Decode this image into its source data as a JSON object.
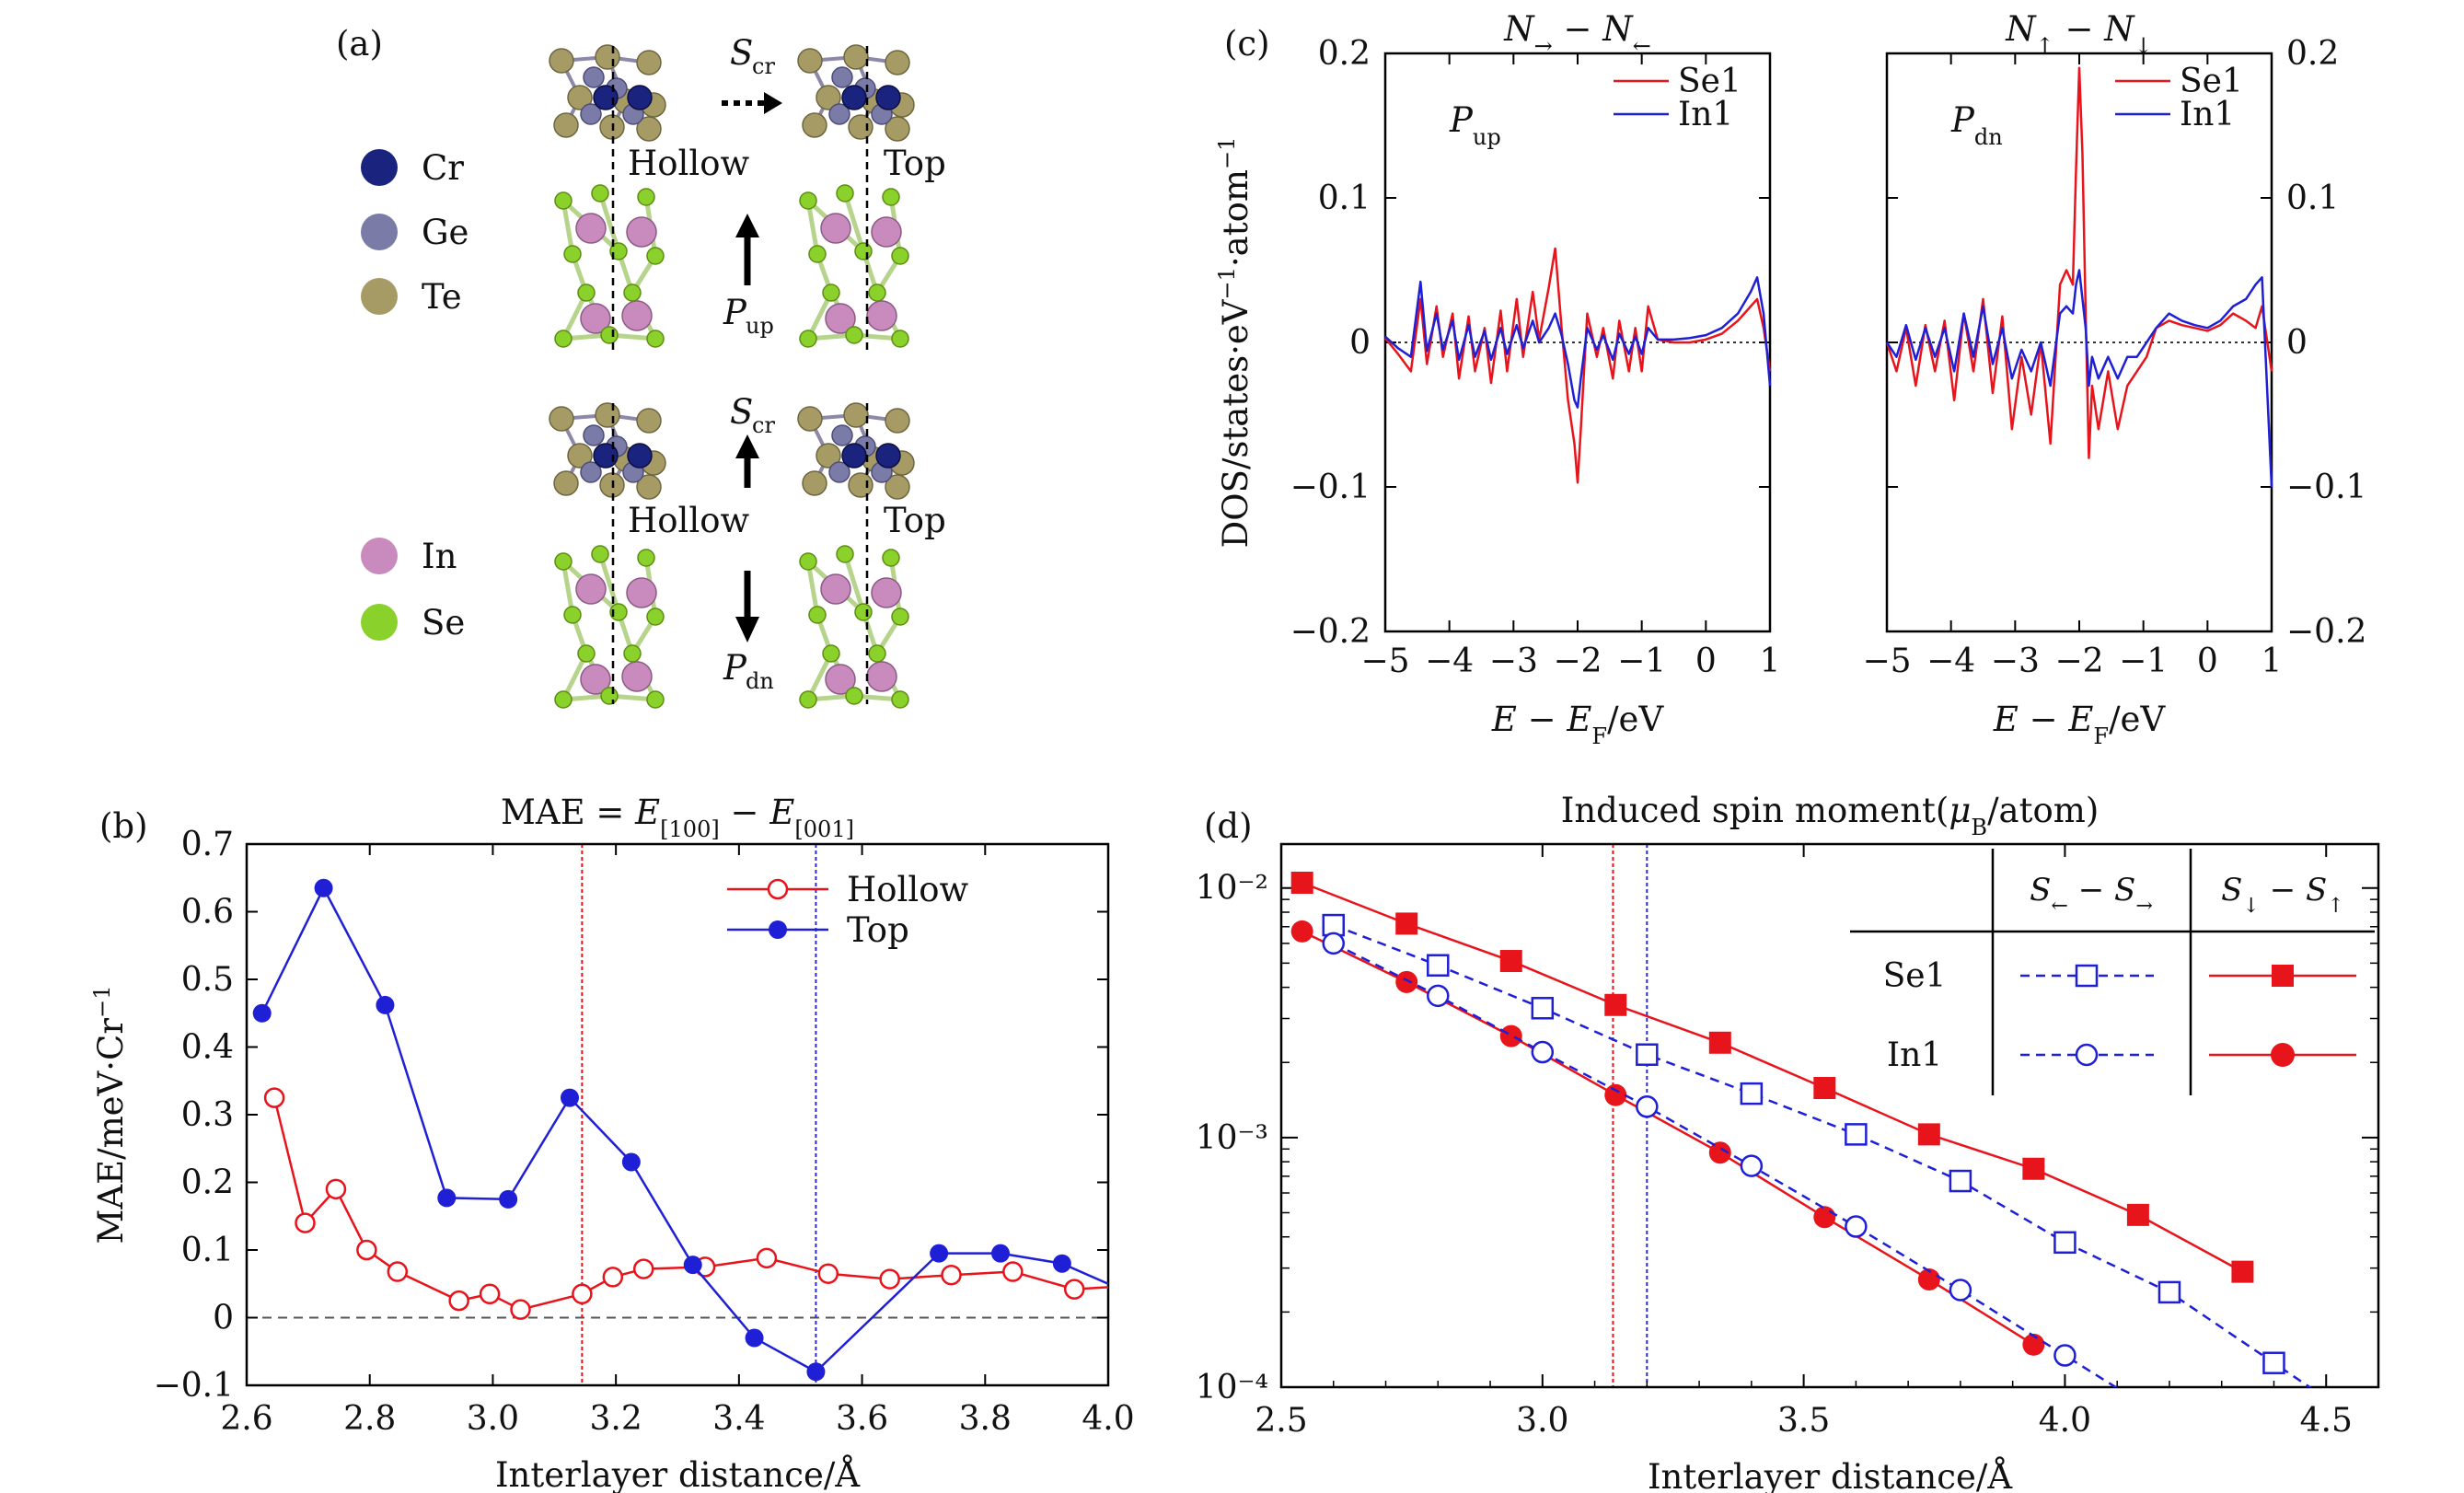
{
  "panels": {
    "a": {
      "label": "(a)",
      "legend": [
        {
          "name": "Cr",
          "color": "#1a237e"
        },
        {
          "name": "Ge",
          "color": "#7b7ba8"
        },
        {
          "name": "Te",
          "color": "#a69b64"
        },
        {
          "name": "In",
          "color": "#c98bbd"
        },
        {
          "name": "Se",
          "color": "#8bd12b"
        }
      ],
      "spin_label_main": "S",
      "spin_label_sub": "cr",
      "pol_up_main": "P",
      "pol_up_sub": "up",
      "pol_dn_main": "P",
      "pol_dn_sub": "dn",
      "site_hollow": "Hollow",
      "site_top": "Top"
    },
    "b": {
      "label": "(b)"
    },
    "c": {
      "label": "(c)"
    },
    "d": {
      "label": "(d)"
    }
  },
  "chart_data": [
    {
      "id": "b",
      "type": "line",
      "title": "MAE = E[100] − E[001]",
      "xlabel": "Interlayer distance/Å",
      "ylabel": "MAE/meV·Cr⁻¹",
      "xlim": [
        2.6,
        4.0
      ],
      "ylim": [
        -0.1,
        0.7
      ],
      "xticks": [
        "2.6",
        "2.8",
        "3.0",
        "3.2",
        "3.4",
        "3.6",
        "3.8",
        "4.0"
      ],
      "yticks": [
        "−0.1",
        "0",
        "0.1",
        "0.2",
        "0.3",
        "0.4",
        "0.5",
        "0.6",
        "0.7"
      ],
      "legend_position": "top-right",
      "vlines": [
        {
          "x": 3.145,
          "color": "#e8141c"
        },
        {
          "x": 3.525,
          "color": "#2b2bd8"
        }
      ],
      "series": [
        {
          "name": "Hollow",
          "color": "#e8141c",
          "marker": "open-circle",
          "x": [
            2.645,
            2.695,
            2.745,
            2.795,
            2.845,
            2.945,
            2.995,
            3.045,
            3.145,
            3.195,
            3.245,
            3.345,
            3.445,
            3.545,
            3.645,
            3.745,
            3.845,
            3.945,
            4.0
          ],
          "y": [
            0.325,
            0.14,
            0.19,
            0.1,
            0.068,
            0.025,
            0.035,
            0.012,
            0.035,
            0.06,
            0.072,
            0.075,
            0.088,
            0.065,
            0.057,
            0.063,
            0.068,
            0.042,
            0.045
          ]
        },
        {
          "name": "Top",
          "color": "#1f1fd6",
          "marker": "filled-circle",
          "x": [
            2.625,
            2.725,
            2.825,
            2.925,
            3.025,
            3.125,
            3.225,
            3.325,
            3.425,
            3.525,
            3.725,
            3.825,
            3.925,
            4.0
          ],
          "y": [
            0.45,
            0.635,
            0.462,
            0.177,
            0.175,
            0.325,
            0.23,
            0.078,
            -0.03,
            -0.08,
            0.095,
            0.095,
            0.08,
            0.05
          ]
        }
      ]
    },
    {
      "id": "c-left",
      "type": "line",
      "title": "N→ − N←",
      "annotation": "Pup",
      "xlabel": "E − EF/eV",
      "ylabel": "DOS/states·eV⁻¹·atom⁻¹",
      "xlim": [
        -5,
        1
      ],
      "ylim": [
        -0.2,
        0.2
      ],
      "xticks": [
        "−5",
        "−4",
        "−3",
        "−2",
        "−1",
        "0",
        "1"
      ],
      "yticks": [
        "−0.2",
        "−0.1",
        "0",
        "0.1",
        "0.2"
      ],
      "legend_position": "top-right",
      "series": [
        {
          "name": "Se1",
          "color": "#e8141c",
          "x": [
            -5,
            -4.8,
            -4.6,
            -4.45,
            -4.35,
            -4.2,
            -4.1,
            -3.95,
            -3.85,
            -3.7,
            -3.6,
            -3.45,
            -3.35,
            -3.2,
            -3.1,
            -2.95,
            -2.85,
            -2.7,
            -2.6,
            -2.45,
            -2.35,
            -2.25,
            -2.15,
            -2.05,
            -2.0,
            -1.95,
            -1.85,
            -1.7,
            -1.6,
            -1.45,
            -1.35,
            -1.2,
            -1.1,
            -1.0,
            -0.9,
            -0.75,
            -0.5,
            -0.25,
            0,
            0.25,
            0.5,
            0.7,
            0.8,
            0.9,
            1.0
          ],
          "y": [
            0.003,
            -0.008,
            -0.02,
            0.03,
            -0.015,
            0.025,
            -0.01,
            0.02,
            -0.025,
            0.018,
            -0.02,
            0.01,
            -0.028,
            0.022,
            -0.02,
            0.03,
            -0.01,
            0.035,
            0.002,
            0.038,
            0.065,
            0.01,
            -0.04,
            -0.07,
            -0.097,
            -0.06,
            0.02,
            -0.01,
            0.01,
            -0.025,
            0.015,
            -0.02,
            0.01,
            -0.02,
            0.025,
            0.002,
            0.0,
            0.0,
            0.002,
            0.006,
            0.015,
            0.025,
            0.03,
            0.01,
            -0.02
          ]
        },
        {
          "name": "In1",
          "color": "#1f1fd6",
          "x": [
            -5,
            -4.8,
            -4.6,
            -4.45,
            -4.35,
            -4.2,
            -4.1,
            -3.95,
            -3.85,
            -3.7,
            -3.6,
            -3.45,
            -3.35,
            -3.2,
            -3.1,
            -2.95,
            -2.85,
            -2.7,
            -2.6,
            -2.45,
            -2.35,
            -2.25,
            -2.15,
            -2.05,
            -2.0,
            -1.95,
            -1.85,
            -1.7,
            -1.6,
            -1.45,
            -1.35,
            -1.2,
            -1.1,
            -1.0,
            -0.9,
            -0.75,
            -0.5,
            -0.25,
            0,
            0.25,
            0.5,
            0.7,
            0.8,
            0.9,
            1.0
          ],
          "y": [
            0.004,
            -0.004,
            -0.01,
            0.042,
            -0.006,
            0.02,
            -0.005,
            0.015,
            -0.012,
            0.012,
            -0.01,
            0.008,
            -0.012,
            0.01,
            -0.008,
            0.012,
            -0.004,
            0.015,
            0.0,
            0.01,
            0.02,
            0.005,
            -0.015,
            -0.04,
            -0.045,
            -0.025,
            0.01,
            -0.005,
            0.005,
            -0.012,
            0.006,
            -0.008,
            0.004,
            -0.008,
            0.01,
            0.002,
            0.002,
            0.003,
            0.005,
            0.01,
            0.02,
            0.035,
            0.045,
            0.02,
            -0.03
          ]
        }
      ]
    },
    {
      "id": "c-right",
      "type": "line",
      "title": "N↑ − N↓",
      "annotation": "Pdn",
      "xlabel": "E − EF/eV",
      "xlim": [
        -5,
        1
      ],
      "ylim": [
        -0.2,
        0.2
      ],
      "xticks": [
        "−5",
        "−4",
        "−3",
        "−2",
        "−1",
        "0",
        "1"
      ],
      "yticks": [
        "−0.2",
        "−0.1",
        "0",
        "0.1",
        "0.2"
      ],
      "legend_position": "top-right",
      "series": [
        {
          "name": "Se1",
          "color": "#e8141c",
          "x": [
            -5,
            -4.85,
            -4.7,
            -4.55,
            -4.4,
            -4.25,
            -4.1,
            -3.95,
            -3.8,
            -3.65,
            -3.5,
            -3.35,
            -3.2,
            -3.05,
            -2.9,
            -2.75,
            -2.6,
            -2.45,
            -2.3,
            -2.2,
            -2.1,
            -2.05,
            -2.0,
            -1.95,
            -1.9,
            -1.85,
            -1.8,
            -1.7,
            -1.55,
            -1.4,
            -1.25,
            -1.1,
            -0.95,
            -0.8,
            -0.6,
            -0.4,
            -0.2,
            0,
            0.2,
            0.4,
            0.6,
            0.75,
            0.85,
            1.0
          ],
          "y": [
            0.0,
            -0.02,
            0.01,
            -0.03,
            0.012,
            -0.02,
            0.015,
            -0.04,
            0.02,
            -0.02,
            0.03,
            -0.035,
            0.018,
            -0.06,
            -0.01,
            -0.05,
            0.0,
            -0.07,
            0.04,
            0.05,
            0.04,
            0.12,
            0.19,
            0.13,
            0.02,
            -0.08,
            -0.03,
            -0.06,
            -0.02,
            -0.06,
            -0.03,
            -0.02,
            -0.01,
            0.01,
            0.015,
            0.012,
            0.01,
            0.008,
            0.012,
            0.02,
            0.015,
            0.01,
            0.025,
            -0.02
          ]
        },
        {
          "name": "In1",
          "color": "#1f1fd6",
          "x": [
            -5,
            -4.85,
            -4.7,
            -4.55,
            -4.4,
            -4.25,
            -4.1,
            -3.95,
            -3.8,
            -3.65,
            -3.5,
            -3.35,
            -3.2,
            -3.05,
            -2.9,
            -2.75,
            -2.6,
            -2.45,
            -2.3,
            -2.2,
            -2.1,
            -2.05,
            -2.0,
            -1.95,
            -1.9,
            -1.85,
            -1.8,
            -1.7,
            -1.55,
            -1.4,
            -1.25,
            -1.1,
            -0.95,
            -0.8,
            -0.6,
            -0.4,
            -0.2,
            0,
            0.2,
            0.4,
            0.6,
            0.75,
            0.85,
            1.0
          ],
          "y": [
            0.0,
            -0.01,
            0.012,
            -0.012,
            0.01,
            -0.01,
            0.01,
            -0.02,
            0.02,
            -0.01,
            0.025,
            -0.015,
            0.01,
            -0.025,
            -0.005,
            -0.02,
            0.0,
            -0.03,
            0.02,
            0.025,
            0.02,
            0.04,
            0.05,
            0.03,
            0.01,
            -0.03,
            -0.01,
            -0.025,
            -0.01,
            -0.025,
            -0.01,
            -0.01,
            0.0,
            0.01,
            0.02,
            0.015,
            0.012,
            0.01,
            0.015,
            0.025,
            0.03,
            0.04,
            0.045,
            -0.1
          ]
        }
      ]
    },
    {
      "id": "d",
      "type": "line",
      "title": "Induced spin moment(μB/atom)",
      "xlabel": "Interlayer distance/Å",
      "xlim": [
        2.5,
        4.6
      ],
      "ylim": [
        0.0001,
        0.015
      ],
      "yscale": "log",
      "xticks": [
        "2.5",
        "3.0",
        "3.5",
        "4.0",
        "4.5"
      ],
      "yticks": [
        "10⁻²",
        "10⁻³",
        "10⁻⁴"
      ],
      "legend_position": "top-right",
      "legend_columns": [
        "S← − S→",
        "S↓ − S↑"
      ],
      "legend_rows": [
        "Se1",
        "In1"
      ],
      "vlines": [
        {
          "x": 3.135,
          "color": "#e8141c"
        },
        {
          "x": 3.2,
          "color": "#2b2bd8"
        }
      ],
      "series": [
        {
          "name": "Se1 S↓ − S↑",
          "color": "#e8141c",
          "marker": "filled-square",
          "style": "solid",
          "x": [
            2.54,
            2.74,
            2.94,
            3.14,
            3.34,
            3.54,
            3.74,
            3.94,
            4.14,
            4.34
          ],
          "y": [
            0.0105,
            0.0072,
            0.0051,
            0.0034,
            0.0024,
            0.00158,
            0.00103,
            0.00075,
            0.00049,
            0.00029
          ]
        },
        {
          "name": "In1 S↓ − S↑",
          "color": "#e8141c",
          "marker": "filled-circle",
          "style": "solid",
          "x": [
            2.54,
            2.74,
            2.94,
            3.14,
            3.34,
            3.54,
            3.74,
            3.94
          ],
          "y": [
            0.0067,
            0.0042,
            0.00255,
            0.00148,
            0.00087,
            0.00048,
            0.00027,
            0.000148
          ]
        },
        {
          "name": "Se1 S← − S→",
          "color": "#1f1fd6",
          "marker": "open-square",
          "style": "dashed",
          "x": [
            2.6,
            2.8,
            3.0,
            3.2,
            3.4,
            3.6,
            3.8,
            4.0,
            4.2,
            4.4
          ],
          "y": [
            0.0071,
            0.0049,
            0.0033,
            0.00215,
            0.0015,
            0.00103,
            0.00067,
            0.00038,
            0.00024,
            0.000125
          ]
        },
        {
          "name": "In1 S← − S→",
          "color": "#1f1fd6",
          "marker": "open-circle",
          "style": "dashed",
          "x": [
            2.6,
            2.8,
            3.0,
            3.2,
            3.4,
            3.6,
            3.8,
            4.0
          ],
          "y": [
            0.006,
            0.0037,
            0.0022,
            0.00133,
            0.00077,
            0.00044,
            0.000245,
            0.000134
          ]
        }
      ]
    }
  ]
}
